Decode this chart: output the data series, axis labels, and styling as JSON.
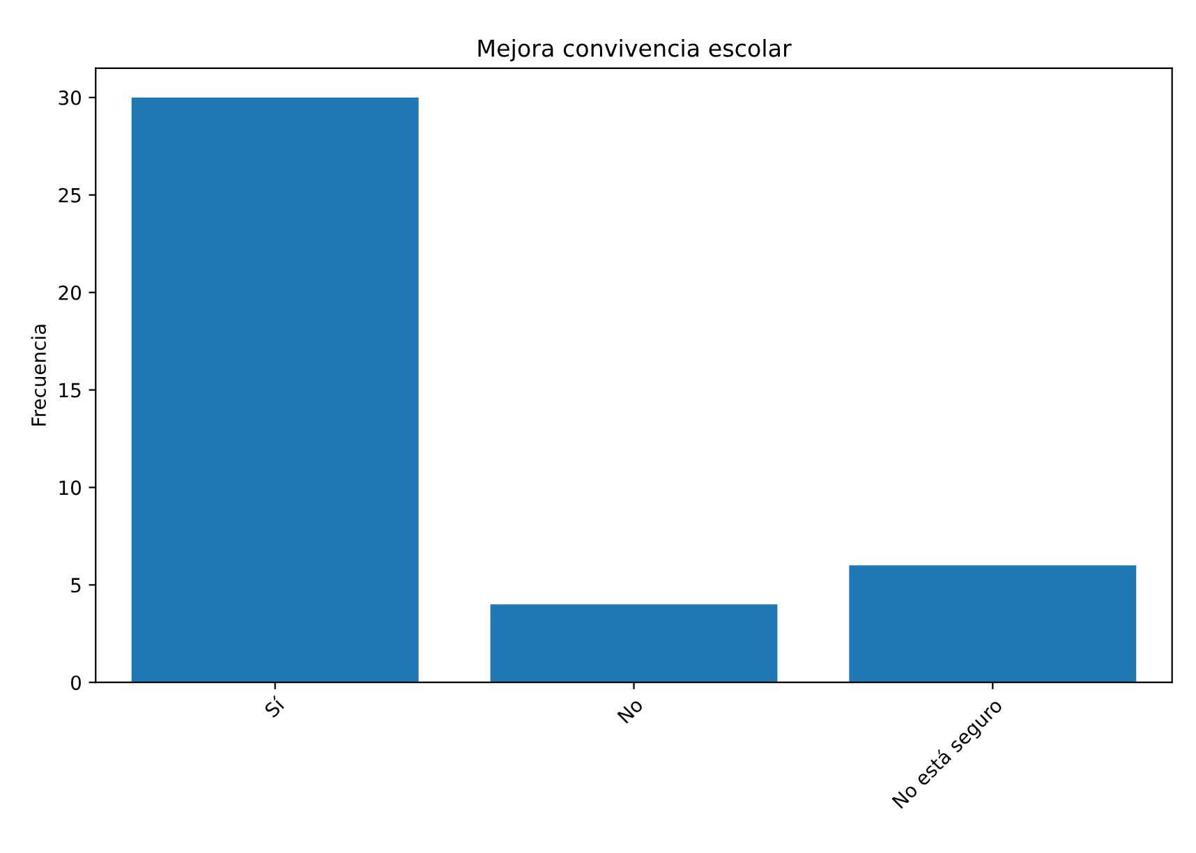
{
  "chart_data": {
    "type": "bar",
    "title": "Mejora convivencia escolar",
    "ylabel": "Frecuencia",
    "categories": [
      "Sí",
      "No",
      "No está seguro"
    ],
    "values": [
      30,
      4,
      6
    ],
    "color": "#1f77b4",
    "ylim": [
      0,
      31.5
    ],
    "yticks": [
      0,
      5,
      10,
      15,
      20,
      25,
      30
    ],
    "grid": false
  }
}
